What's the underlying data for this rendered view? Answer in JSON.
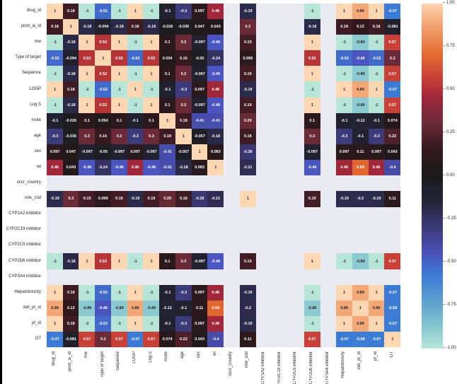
{
  "chart_data": {
    "type": "heatmap",
    "title": "",
    "labels": [
      "drug_id",
      "prod_ai_id",
      "mw",
      "Type of target",
      "Sequence",
      "LOGP",
      "Log S",
      "route",
      "age",
      "sex",
      "wt",
      "occr_country",
      "role_cod",
      "CYP1A2 inhibitor",
      "CYP2C19 inhibitor",
      "CYP2C9 inhibitor",
      "CYP2D6 inhibitor",
      "CYP3A4 inhibitor",
      "Hepatotoxicity",
      "indi_pt_id",
      "pt_id",
      "OT"
    ],
    "matrix": [
      [
        1,
        0.18,
        -1,
        -0.52,
        -1,
        1,
        -1,
        -0.1,
        -0.3,
        0.097,
        0.46,
        null,
        -0.19,
        null,
        null,
        null,
        -1,
        null,
        1,
        0.89,
        1,
        -0.57
      ],
      [
        0.18,
        1,
        -0.18,
        -0.094,
        -0.18,
        0.18,
        -0.18,
        -0.026,
        -0.036,
        0.047,
        0.043,
        null,
        0.3,
        null,
        null,
        null,
        -0.18,
        null,
        0.18,
        0.13,
        0.18,
        -0.081
      ],
      [
        -1,
        -0.18,
        1,
        0.52,
        1,
        -1,
        1,
        0.1,
        0.3,
        -0.097,
        -0.46,
        null,
        0.19,
        null,
        null,
        null,
        1,
        null,
        -1,
        -0.89,
        -1,
        0.57
      ],
      [
        -0.52,
        -0.094,
        0.52,
        1,
        0.52,
        -0.52,
        0.52,
        0.054,
        0.16,
        -0.05,
        -0.24,
        null,
        0.099,
        null,
        null,
        null,
        0.52,
        null,
        -0.52,
        -0.46,
        -0.52,
        0.3
      ],
      [
        -1,
        -0.18,
        1,
        0.52,
        1,
        -1,
        1,
        0.1,
        0.3,
        -0.097,
        -0.46,
        null,
        0.19,
        null,
        null,
        null,
        1,
        null,
        -1,
        -0.89,
        -1,
        0.57
      ],
      [
        1,
        0.18,
        -1,
        -0.52,
        -1,
        1,
        -1,
        -0.1,
        -0.3,
        0.097,
        0.46,
        null,
        -0.19,
        null,
        null,
        null,
        -1,
        null,
        1,
        0.89,
        1,
        -0.57
      ],
      [
        -1,
        -0.18,
        1,
        0.52,
        1,
        -1,
        1,
        0.1,
        0.3,
        -0.097,
        -0.46,
        null,
        0.19,
        null,
        null,
        null,
        1,
        null,
        -1,
        -0.89,
        -1,
        0.57
      ],
      [
        -0.1,
        -0.026,
        0.1,
        0.054,
        0.1,
        -0.1,
        0.1,
        1,
        0.18,
        -0.41,
        -0.41,
        null,
        0.29,
        null,
        null,
        null,
        0.1,
        null,
        -0.1,
        -0.12,
        -0.1,
        0.074
      ],
      [
        -0.3,
        -0.036,
        0.3,
        0.16,
        0.3,
        -0.3,
        0.3,
        0.18,
        1,
        -0.057,
        -0.18,
        null,
        0.18,
        null,
        null,
        null,
        0.3,
        null,
        -0.3,
        -0.1,
        -0.3,
        0.22
      ],
      [
        0.097,
        0.047,
        -0.097,
        -0.05,
        -0.097,
        0.097,
        -0.097,
        -0.41,
        -0.057,
        1,
        0.083,
        null,
        -0.28,
        null,
        null,
        null,
        -0.097,
        null,
        0.097,
        0.11,
        0.097,
        0.043
      ],
      [
        0.46,
        0.043,
        -0.46,
        -0.24,
        -0.46,
        0.46,
        -0.46,
        -0.41,
        -0.18,
        0.083,
        1,
        null,
        -0.21,
        null,
        null,
        null,
        -0.46,
        null,
        0.46,
        0.69,
        0.46,
        -0.4
      ],
      [
        null,
        null,
        null,
        null,
        null,
        null,
        null,
        null,
        null,
        null,
        null,
        null,
        null,
        null,
        null,
        null,
        null,
        null,
        null,
        null,
        null,
        null
      ],
      [
        -0.19,
        0.3,
        0.19,
        0.099,
        0.19,
        -0.19,
        0.19,
        0.29,
        0.18,
        -0.28,
        -0.21,
        null,
        1,
        null,
        null,
        null,
        0.19,
        null,
        -0.19,
        -0.2,
        -0.19,
        0.11
      ],
      [
        null,
        null,
        null,
        null,
        null,
        null,
        null,
        null,
        null,
        null,
        null,
        null,
        null,
        null,
        null,
        null,
        null,
        null,
        null,
        null,
        null,
        null
      ],
      [
        null,
        null,
        null,
        null,
        null,
        null,
        null,
        null,
        null,
        null,
        null,
        null,
        null,
        null,
        null,
        null,
        null,
        null,
        null,
        null,
        null,
        null
      ],
      [
        null,
        null,
        null,
        null,
        null,
        null,
        null,
        null,
        null,
        null,
        null,
        null,
        null,
        null,
        null,
        null,
        null,
        null,
        null,
        null,
        null,
        null
      ],
      [
        -1,
        -0.18,
        1,
        0.52,
        1,
        -1,
        1,
        0.1,
        0.3,
        -0.097,
        -0.46,
        null,
        0.19,
        null,
        null,
        null,
        1,
        null,
        -1,
        -0.89,
        -1,
        0.57
      ],
      [
        null,
        null,
        null,
        null,
        null,
        null,
        null,
        null,
        null,
        null,
        null,
        null,
        null,
        null,
        null,
        null,
        null,
        null,
        null,
        null,
        null,
        null
      ],
      [
        1,
        0.18,
        -1,
        -0.52,
        -1,
        1,
        -1,
        -0.1,
        -0.3,
        0.097,
        0.46,
        null,
        -0.19,
        null,
        null,
        null,
        -1,
        null,
        1,
        0.89,
        1,
        -0.57
      ],
      [
        0.89,
        0.13,
        -0.89,
        -0.46,
        -0.89,
        0.89,
        -0.89,
        -0.12,
        -0.1,
        0.11,
        0.69,
        null,
        -0.2,
        null,
        null,
        null,
        -0.89,
        null,
        0.89,
        1,
        0.89,
        -0.58
      ],
      [
        1,
        0.18,
        -1,
        -0.52,
        -1,
        1,
        -1,
        -0.1,
        -0.3,
        0.097,
        0.46,
        null,
        -0.19,
        null,
        null,
        null,
        -1,
        null,
        1,
        0.89,
        1,
        -0.57
      ],
      [
        -0.57,
        -0.081,
        0.57,
        0.3,
        0.57,
        -0.57,
        0.57,
        0.074,
        0.22,
        0.043,
        -0.4,
        null,
        0.11,
        null,
        null,
        null,
        0.57,
        null,
        -0.57,
        -0.58,
        -0.57,
        1
      ]
    ],
    "vmin": -1,
    "vmax": 1,
    "colormap": "icefire",
    "colorbar_ticks": [
      "1.00",
      "0.75",
      "0.50",
      "0.25",
      "0.00",
      "-0.25",
      "-0.50",
      "-0.75",
      "-1.00"
    ],
    "colorbar_tick_values": [
      1,
      0.75,
      0.5,
      0.25,
      0,
      -0.25,
      -0.5,
      -0.75,
      -1
    ],
    "colorbar_position": "right",
    "colors": {
      "stops": [
        [
          -1,
          "#b7e6d9"
        ],
        [
          -0.89,
          "#8ccad2"
        ],
        [
          -0.75,
          "#5fa6d0"
        ],
        [
          -0.57,
          "#3a7bd5"
        ],
        [
          -0.46,
          "#4a55c0"
        ],
        [
          -0.3,
          "#3d3a7a"
        ],
        [
          -0.15,
          "#25253a"
        ],
        [
          0,
          "#1a1a1a"
        ],
        [
          0.15,
          "#33181e"
        ],
        [
          0.3,
          "#6a2a38"
        ],
        [
          0.46,
          "#a0283a"
        ],
        [
          0.57,
          "#c84038"
        ],
        [
          0.7,
          "#e26a2e"
        ],
        [
          0.89,
          "#f4a878"
        ],
        [
          1,
          "#fdd6b2"
        ]
      ],
      "nan_background": "#eaeaf2"
    }
  }
}
